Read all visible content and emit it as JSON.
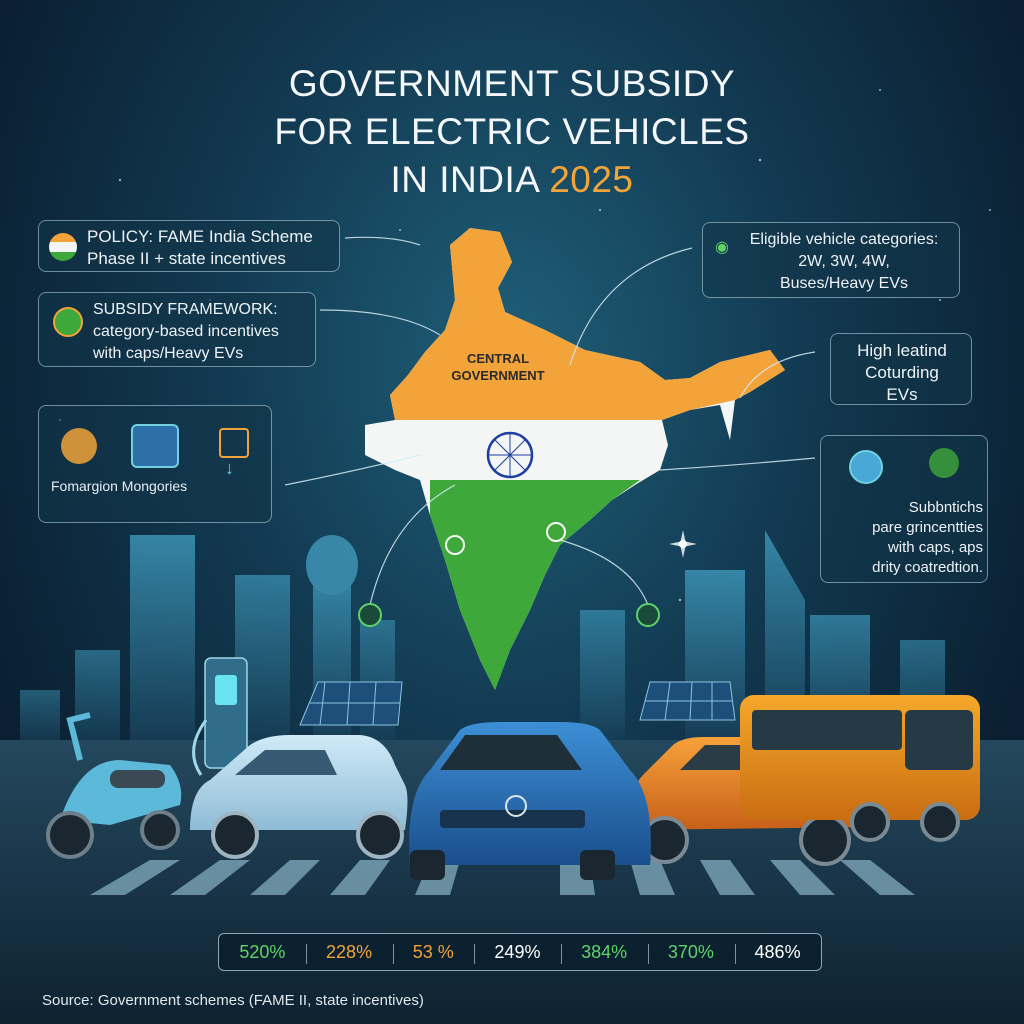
{
  "title": {
    "line1": "GOVERNMENT SUBSIDY",
    "line2": "FOR ELECTRIC VEHICLES",
    "line3_prefix": "IN INDIA ",
    "year": "2025"
  },
  "cards": {
    "policy": {
      "line1": "POLICY: FAME India Scheme",
      "line2": "Phase II + state incentives"
    },
    "framework": {
      "line1": "SUBSIDY FRAMEWORK:",
      "line2": "category-based incentives",
      "line3": "with caps/Heavy EVs"
    },
    "formation": {
      "label": "Fomargion Mongories"
    },
    "eligible": {
      "line1": "Eligible vehicle categories:",
      "line2": "2W, 3W, 4W,",
      "line3": "Buses/Heavy EVs"
    },
    "high": {
      "line1": "High leatind",
      "line2": "Coturding",
      "line3": "EVs"
    },
    "subs": {
      "line1": "Subbntichs",
      "line2": "pare grincentties",
      "line3": "with caps, aps",
      "line4": "drity coatredtion."
    }
  },
  "map": {
    "label_line1": "CENTRAL",
    "label_line2": "GOVERNMENT"
  },
  "stats": [
    {
      "value": "520%",
      "color": "#5fd36a"
    },
    {
      "value": "228%",
      "color": "#f2a33a"
    },
    {
      "value": "53 %",
      "color": "#f2a33a"
    },
    {
      "value": "249%",
      "color": "#ffffff"
    },
    {
      "value": "384%",
      "color": "#5fd36a"
    },
    {
      "value": "370%",
      "color": "#5fd36a"
    },
    {
      "value": "486%",
      "color": "#ffffff"
    }
  ],
  "source": "Source: Government schemes (FAME II, state incentives)",
  "colors": {
    "saffron": "#f2a33a",
    "green": "#3fa83a",
    "white": "#f4f6f6",
    "chakra": "#1d3fa0",
    "accent_bus": "#f0a020"
  }
}
